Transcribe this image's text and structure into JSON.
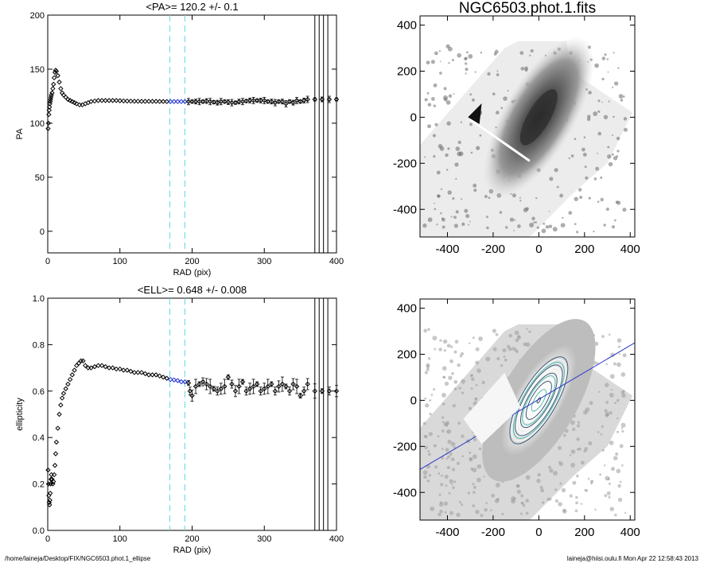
{
  "footer": {
    "left": "/home/laineja/Desktop/FIX/NGC6503.phot.1_ellipse",
    "right": "laineja@hiisi.oulu.fi  Mon Apr 22 12:58:43 2013"
  },
  "chart_data": [
    {
      "id": "pa",
      "type": "scatter",
      "title": "<PA>= 120.2 +/-   0.1",
      "xlabel": "RAD (pix)",
      "ylabel": "PA",
      "xlim": [
        0,
        400
      ],
      "ylim": [
        -20,
        200
      ],
      "xticks": [
        0,
        100,
        200,
        300,
        400
      ],
      "yticks": [
        0,
        50,
        100,
        150,
        200
      ],
      "vlines_cyan_dashed": [
        169,
        190
      ],
      "vlines_black": [
        370,
        376,
        382,
        388
      ],
      "highlight_range": [
        169,
        190
      ],
      "colors": {
        "points": "#000000",
        "highlight": "#1f2fd0",
        "vline_cyan": "#5fd8e6"
      },
      "series": [
        {
          "x": [
            0.5,
            1,
            1.5,
            2,
            2.5,
            3,
            3.5,
            4,
            4.5,
            5,
            6,
            7,
            8,
            9,
            10,
            11,
            12,
            14,
            16,
            18,
            20,
            22,
            25,
            28,
            31,
            34,
            37,
            40,
            44,
            48,
            52,
            56,
            60,
            65,
            70,
            75,
            80,
            85,
            90,
            95,
            100,
            105,
            110,
            115,
            120,
            125,
            130,
            135,
            140,
            145,
            150,
            155,
            160,
            165,
            170,
            175,
            180,
            185,
            190,
            195,
            200,
            205,
            210,
            215,
            220,
            225,
            230,
            235,
            240,
            245,
            250,
            255,
            260,
            265,
            270,
            275,
            280,
            285,
            290,
            295,
            300,
            305,
            310,
            315,
            320,
            325,
            330,
            335,
            340,
            345,
            350,
            355,
            360,
            370,
            380,
            390,
            400
          ],
          "y": [
            95,
            100,
            108,
            112,
            115,
            118,
            120,
            122,
            124,
            126,
            128,
            132,
            136,
            142,
            147,
            149,
            148,
            144,
            138,
            132,
            128,
            126,
            124,
            122,
            121,
            120,
            119,
            118,
            117,
            117,
            118,
            119,
            120,
            120.5,
            121,
            121,
            121,
            121,
            121,
            121,
            120.8,
            120.6,
            120.5,
            120.4,
            120.3,
            120.3,
            120.2,
            120.2,
            120.2,
            120.2,
            120.2,
            120.1,
            120.1,
            120,
            120,
            120,
            120,
            120,
            120,
            120,
            120,
            120,
            120,
            120,
            120.5,
            120,
            119.5,
            119,
            120,
            120,
            119.5,
            119,
            119,
            120,
            120,
            120.5,
            121,
            121,
            121,
            121,
            121,
            120,
            120,
            119,
            120,
            120,
            118,
            120,
            119,
            121,
            120,
            121,
            122,
            122,
            122,
            122,
            122
          ]
        }
      ]
    },
    {
      "id": "ell",
      "type": "scatter",
      "title": "<ELL>= 0.648 +/-  0.008",
      "xlabel": "RAD (pix)",
      "ylabel": "ellipticity",
      "xlim": [
        0,
        400
      ],
      "ylim": [
        0,
        1
      ],
      "xticks": [
        0,
        100,
        200,
        300,
        400
      ],
      "yticks": [
        0.0,
        0.2,
        0.4,
        0.6,
        0.8,
        1.0
      ],
      "vlines_cyan_dashed": [
        169,
        190
      ],
      "vlines_black": [
        370,
        376,
        382,
        388
      ],
      "highlight_range": [
        169,
        190
      ],
      "colors": {
        "points": "#000000",
        "highlight": "#1f2fd0",
        "vline_cyan": "#5fd8e6"
      },
      "series": [
        {
          "x": [
            0.5,
            1,
            1.5,
            2,
            2.5,
            3,
            3.5,
            4,
            4.5,
            5,
            6,
            7,
            8,
            9,
            10,
            11,
            12,
            14,
            16,
            18,
            20,
            22,
            25,
            28,
            31,
            34,
            37,
            40,
            43,
            46,
            49,
            52,
            56,
            60,
            65,
            70,
            75,
            80,
            85,
            90,
            95,
            100,
            105,
            110,
            115,
            120,
            125,
            130,
            135,
            140,
            145,
            150,
            155,
            160,
            165,
            170,
            175,
            180,
            185,
            190,
            195,
            197,
            200,
            205,
            210,
            215,
            220,
            225,
            230,
            235,
            240,
            245,
            250,
            255,
            260,
            265,
            270,
            275,
            280,
            285,
            290,
            295,
            300,
            305,
            310,
            315,
            320,
            325,
            330,
            335,
            340,
            345,
            350,
            355,
            360,
            370,
            380,
            390,
            400
          ],
          "y": [
            0.26,
            0.2,
            0.15,
            0.12,
            0.11,
            0.13,
            0.16,
            0.2,
            0.22,
            0.24,
            0.22,
            0.2,
            0.21,
            0.24,
            0.28,
            0.33,
            0.38,
            0.44,
            0.5,
            0.54,
            0.57,
            0.59,
            0.61,
            0.63,
            0.65,
            0.67,
            0.69,
            0.71,
            0.72,
            0.73,
            0.73,
            0.71,
            0.7,
            0.7,
            0.705,
            0.71,
            0.71,
            0.705,
            0.7,
            0.7,
            0.695,
            0.695,
            0.69,
            0.69,
            0.685,
            0.68,
            0.68,
            0.68,
            0.675,
            0.67,
            0.67,
            0.67,
            0.665,
            0.66,
            0.655,
            0.65,
            0.648,
            0.645,
            0.64,
            0.64,
            0.635,
            0.6,
            0.58,
            0.62,
            0.63,
            0.64,
            0.63,
            0.62,
            0.61,
            0.6,
            0.61,
            0.62,
            0.66,
            0.63,
            0.6,
            0.62,
            0.64,
            0.6,
            0.61,
            0.62,
            0.63,
            0.6,
            0.61,
            0.62,
            0.63,
            0.6,
            0.62,
            0.63,
            0.62,
            0.6,
            0.63,
            0.62,
            0.58,
            0.6,
            0.63,
            0.6,
            0.6,
            0.6,
            0.6
          ]
        }
      ]
    },
    {
      "id": "img1",
      "type": "heatmap",
      "title": "NGC6503.phot.1.fits",
      "xlim": [
        -520,
        420
      ],
      "ylim": [
        -520,
        440
      ],
      "xticks": [
        -400,
        -200,
        0,
        200,
        400
      ],
      "yticks": [
        -400,
        -200,
        0,
        200,
        400
      ],
      "description_colormap": "grayscale",
      "galaxy": {
        "x": 0,
        "y": 0,
        "pa": 120.2,
        "ell": 0.648
      }
    },
    {
      "id": "img2",
      "type": "heatmap",
      "title": "",
      "xlim": [
        -520,
        420
      ],
      "ylim": [
        -520,
        440
      ],
      "xticks": [
        -400,
        -200,
        0,
        200,
        400
      ],
      "yticks": [
        -400,
        -200,
        0,
        200,
        400
      ],
      "galaxy": {
        "x": 0,
        "y": 0,
        "pa": 120.2,
        "ell": 0.648
      },
      "pa_line": {
        "x1": -520,
        "y1": -300,
        "x2": 420,
        "y2": 250,
        "color": "#2a36c8"
      },
      "contour_colors": [
        "#ffffff",
        "#2f4f6f",
        "#46b8a8"
      ]
    }
  ]
}
